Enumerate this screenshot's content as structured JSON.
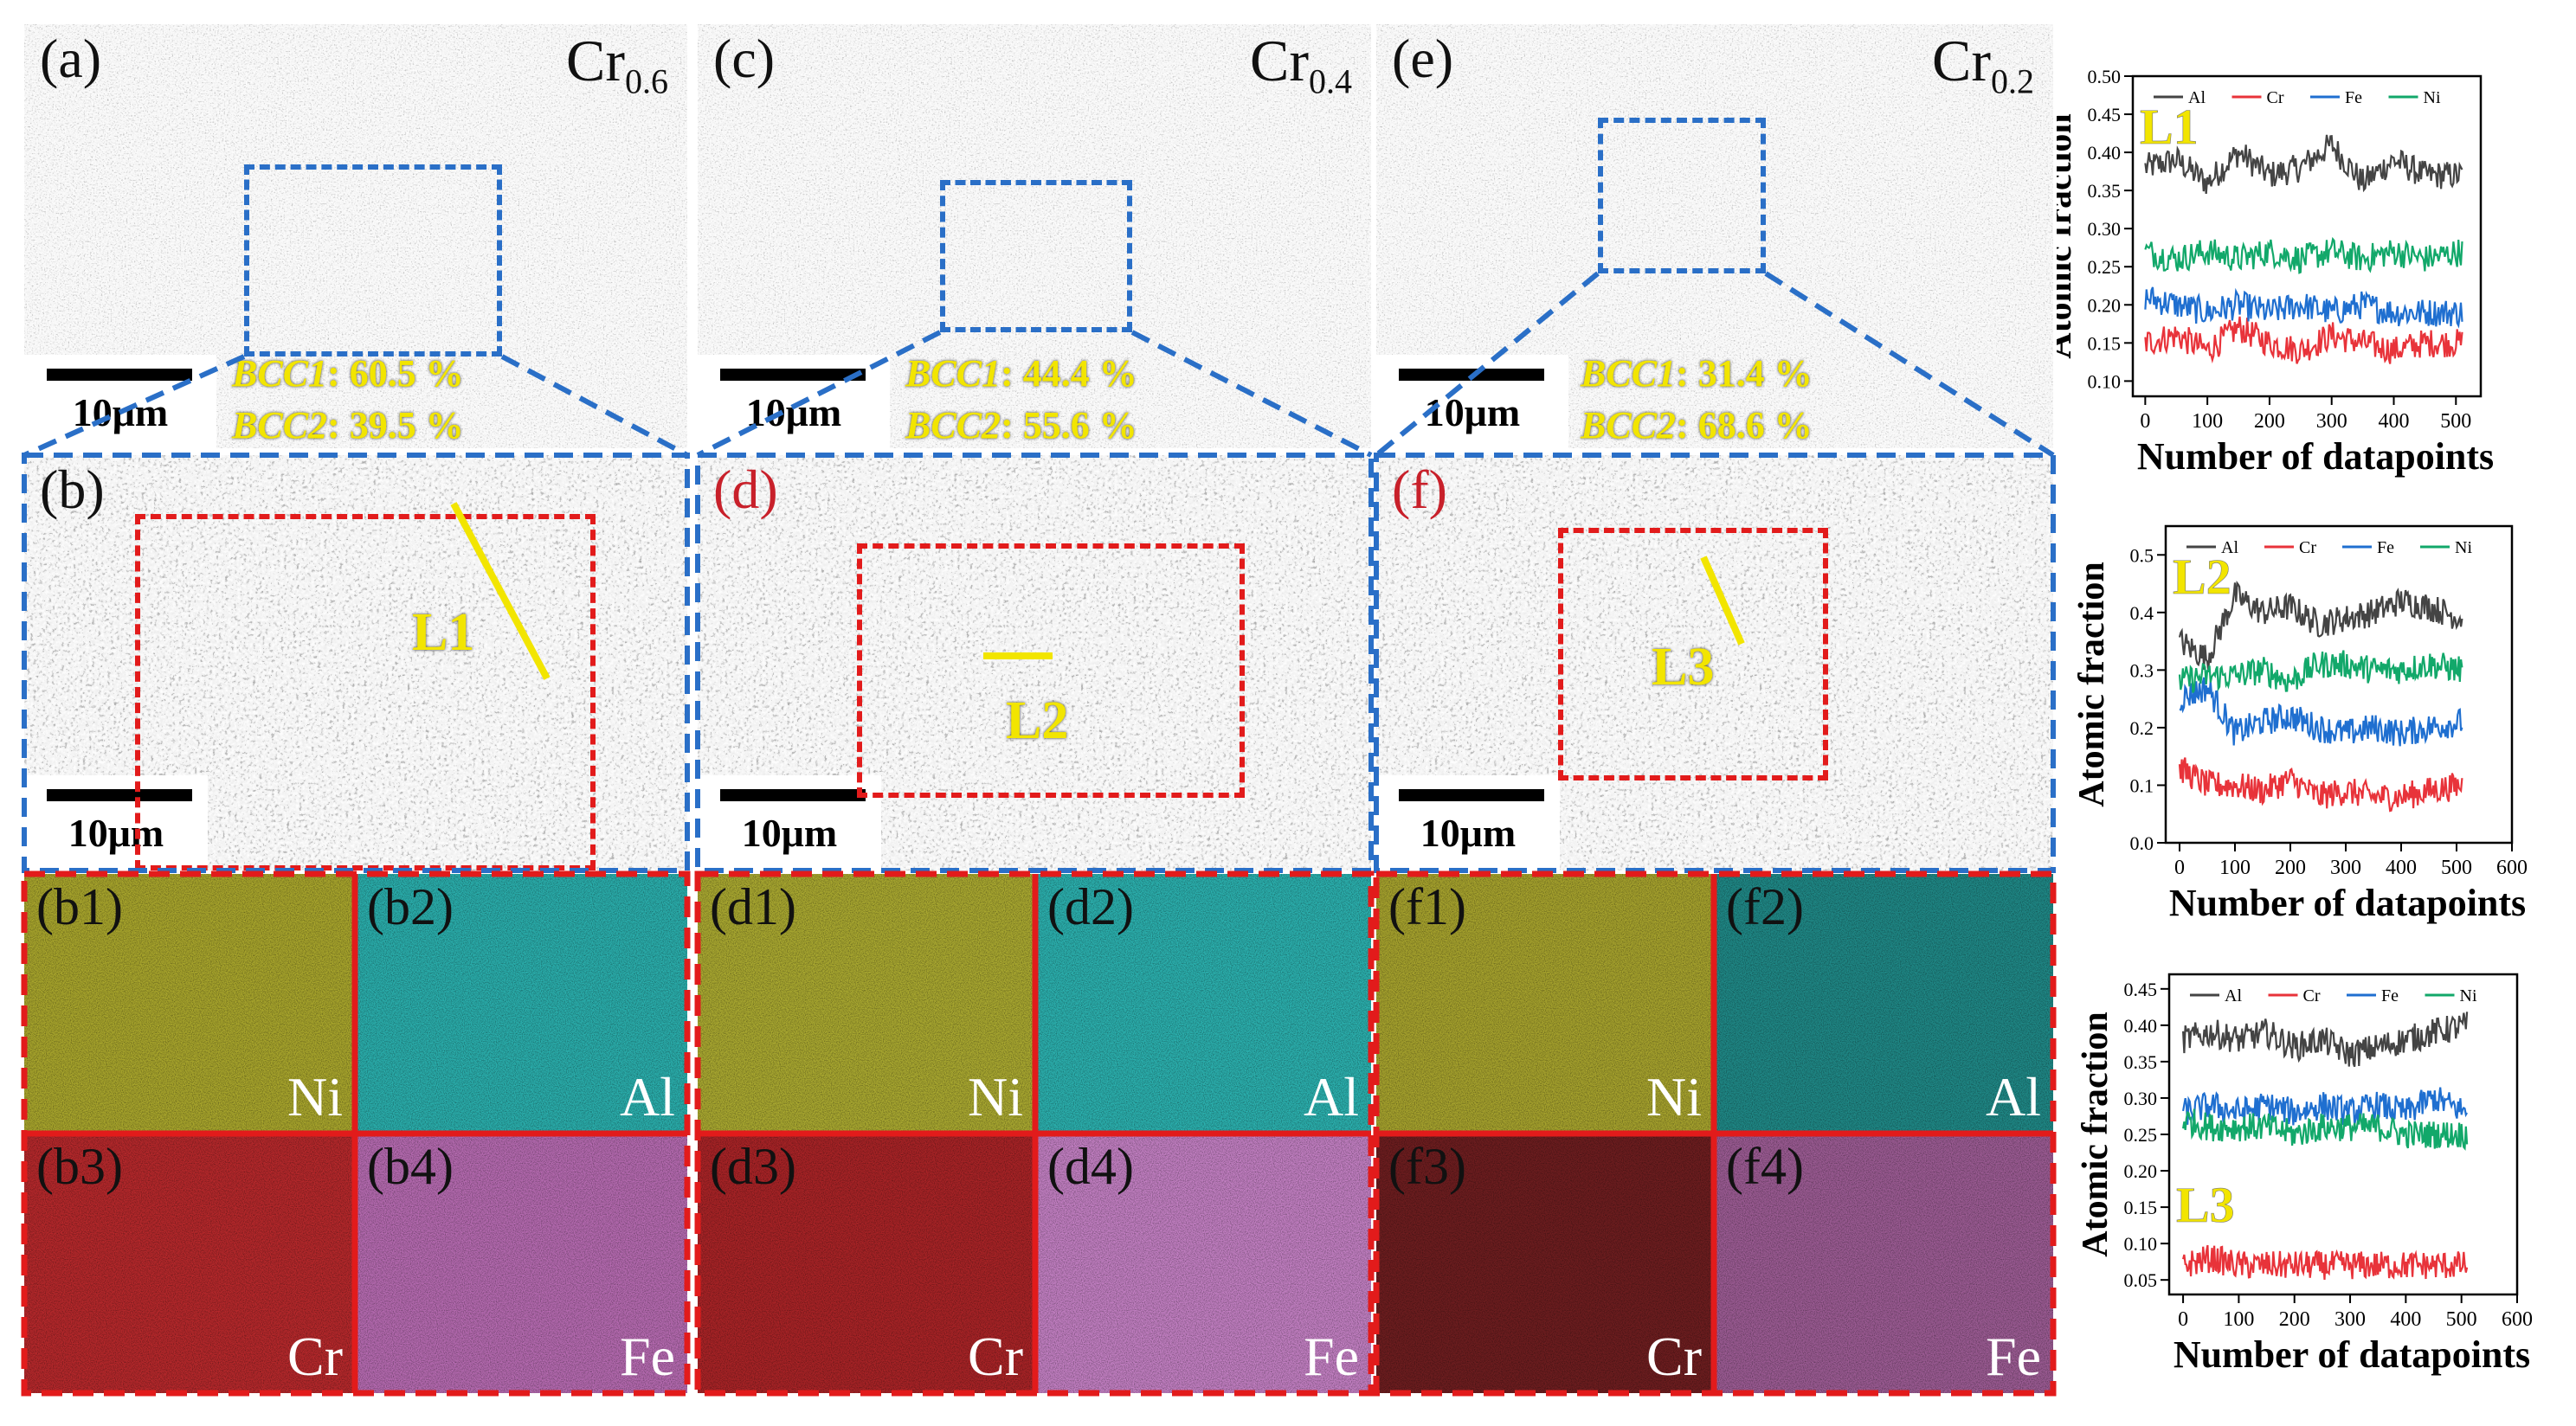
{
  "top_panels": [
    {
      "label": "(a)",
      "comp_base": "Cr",
      "comp_sub": "0.6",
      "scalebar": "10μm",
      "bcc1": "BCC1",
      "bcc1_val": ": 60.5 %",
      "bcc2": "BCC2",
      "bcc2_val": ": 39.5 %"
    },
    {
      "label": "(c)",
      "comp_base": "Cr",
      "comp_sub": "0.4",
      "scalebar": "10μm",
      "bcc1": "BCC1",
      "bcc1_val": ": 44.4 %",
      "bcc2": "BCC2",
      "bcc2_val": ": 55.6 %"
    },
    {
      "label": "(e)",
      "comp_base": "Cr",
      "comp_sub": "0.2",
      "scalebar": "10μm",
      "bcc1": "BCC1",
      "bcc1_val": ": 31.4 %",
      "bcc2": "BCC2",
      "bcc2_val": ": 68.6 %"
    }
  ],
  "mid_panels": [
    {
      "label": "(b)",
      "line": "L1",
      "scalebar": "10μm"
    },
    {
      "label": "(d)",
      "line": "L2",
      "scalebar": "10μm"
    },
    {
      "label": "(f)",
      "line": "L3",
      "scalebar": "10μm"
    }
  ],
  "maps": [
    {
      "label": "(b1)",
      "element": "Ni",
      "color": "#a8a52c"
    },
    {
      "label": "(b2)",
      "element": "Al",
      "color": "#2aaeac"
    },
    {
      "label": "(d1)",
      "element": "Ni",
      "color": "#a9a830"
    },
    {
      "label": "(d2)",
      "element": "Al",
      "color": "#2bb0ae"
    },
    {
      "label": "(f1)",
      "element": "Ni",
      "color": "#a6a22d"
    },
    {
      "label": "(f2)",
      "element": "Al",
      "color": "#1f8886"
    },
    {
      "label": "(b3)",
      "element": "Cr",
      "color": "#b5282b"
    },
    {
      "label": "(b4)",
      "element": "Fe",
      "color": "#b56ab0"
    },
    {
      "label": "(d3)",
      "element": "Cr",
      "color": "#a82326"
    },
    {
      "label": "(d4)",
      "element": "Fe",
      "color": "#c27fc2"
    },
    {
      "label": "(f3)",
      "element": "Cr",
      "color": "#6d1d1f"
    },
    {
      "label": "(f4)",
      "element": "Fe",
      "color": "#9b5b93"
    }
  ],
  "colors": {
    "Al": "#444444",
    "Cr": "#e8333a",
    "Fe": "#1f6fd0",
    "Ni": "#12a86a",
    "line_marker": "#f2e500",
    "frame_blue": "#2a6fc7",
    "frame_red": "#e21b1b"
  },
  "chart_data": [
    {
      "type": "line",
      "inset_label": "L1",
      "xlabel": "Number of datapoints",
      "ylabel": "Atomic fraction",
      "xlim": [
        -20,
        540
      ],
      "ylim": [
        0.08,
        0.5
      ],
      "xticks": [
        0,
        100,
        200,
        300,
        400,
        500
      ],
      "xticklabels": [
        "0",
        "100",
        "200",
        "300",
        "400",
        "500"
      ],
      "yticks": [
        0.1,
        0.15,
        0.2,
        0.25,
        0.3,
        0.35,
        0.4,
        0.45,
        0.5
      ],
      "yticklabels": [
        "0.10",
        "0.15",
        "0.20",
        "0.25",
        "0.30",
        "0.35",
        "0.40",
        "0.45",
        "0.50"
      ],
      "legend_position": "top",
      "series": [
        {
          "name": "Al",
          "x_start": 0,
          "x_end": 510,
          "points": [
            [
              0,
              0.38
            ],
            [
              50,
              0.39
            ],
            [
              100,
              0.36
            ],
            [
              150,
              0.4
            ],
            [
              200,
              0.37
            ],
            [
              250,
              0.38
            ],
            [
              300,
              0.41
            ],
            [
              350,
              0.36
            ],
            [
              400,
              0.39
            ],
            [
              450,
              0.37
            ],
            [
              510,
              0.37
            ]
          ]
        },
        {
          "name": "Cr",
          "x_start": 0,
          "x_end": 510,
          "points": [
            [
              0,
              0.15
            ],
            [
              50,
              0.16
            ],
            [
              100,
              0.14
            ],
            [
              150,
              0.17
            ],
            [
              200,
              0.15
            ],
            [
              250,
              0.14
            ],
            [
              300,
              0.16
            ],
            [
              350,
              0.15
            ],
            [
              400,
              0.14
            ],
            [
              450,
              0.15
            ],
            [
              510,
              0.15
            ]
          ]
        },
        {
          "name": "Fe",
          "x_start": 0,
          "x_end": 510,
          "points": [
            [
              0,
              0.21
            ],
            [
              50,
              0.2
            ],
            [
              100,
              0.19
            ],
            [
              150,
              0.2
            ],
            [
              200,
              0.19
            ],
            [
              250,
              0.2
            ],
            [
              300,
              0.19
            ],
            [
              350,
              0.2
            ],
            [
              400,
              0.19
            ],
            [
              450,
              0.19
            ],
            [
              510,
              0.19
            ]
          ]
        },
        {
          "name": "Ni",
          "x_start": 0,
          "x_end": 510,
          "points": [
            [
              0,
              0.27
            ],
            [
              50,
              0.26
            ],
            [
              100,
              0.27
            ],
            [
              150,
              0.26
            ],
            [
              200,
              0.27
            ],
            [
              250,
              0.26
            ],
            [
              300,
              0.27
            ],
            [
              350,
              0.26
            ],
            [
              400,
              0.27
            ],
            [
              450,
              0.26
            ],
            [
              510,
              0.27
            ]
          ]
        }
      ]
    },
    {
      "type": "line",
      "inset_label": "L2",
      "xlabel": "Number of datapoints",
      "ylabel": "Atomic fraction",
      "xlim": [
        -25,
        600
      ],
      "ylim": [
        0.0,
        0.55
      ],
      "xticks": [
        0,
        100,
        200,
        300,
        400,
        500,
        600
      ],
      "xticklabels": [
        "0",
        "100",
        "200",
        "300",
        "400",
        "500",
        "600"
      ],
      "yticks": [
        0.0,
        0.1,
        0.2,
        0.3,
        0.4,
        0.5
      ],
      "yticklabels": [
        "0.0",
        "0.1",
        "0.2",
        "0.3",
        "0.4",
        "0.5"
      ],
      "legend_position": "top",
      "series": [
        {
          "name": "Al",
          "x_start": 0,
          "x_end": 510,
          "points": [
            [
              0,
              0.35
            ],
            [
              50,
              0.32
            ],
            [
              100,
              0.43
            ],
            [
              150,
              0.4
            ],
            [
              200,
              0.41
            ],
            [
              250,
              0.38
            ],
            [
              300,
              0.39
            ],
            [
              350,
              0.4
            ],
            [
              400,
              0.42
            ],
            [
              450,
              0.41
            ],
            [
              510,
              0.39
            ]
          ]
        },
        {
          "name": "Cr",
          "x_start": 0,
          "x_end": 510,
          "points": [
            [
              0,
              0.13
            ],
            [
              50,
              0.1
            ],
            [
              100,
              0.1
            ],
            [
              150,
              0.09
            ],
            [
              200,
              0.11
            ],
            [
              250,
              0.08
            ],
            [
              300,
              0.09
            ],
            [
              350,
              0.08
            ],
            [
              400,
              0.08
            ],
            [
              450,
              0.09
            ],
            [
              510,
              0.1
            ]
          ]
        },
        {
          "name": "Fe",
          "x_start": 0,
          "x_end": 510,
          "points": [
            [
              0,
              0.25
            ],
            [
              50,
              0.27
            ],
            [
              100,
              0.19
            ],
            [
              150,
              0.21
            ],
            [
              200,
              0.22
            ],
            [
              250,
              0.2
            ],
            [
              300,
              0.19
            ],
            [
              350,
              0.2
            ],
            [
              400,
              0.19
            ],
            [
              450,
              0.2
            ],
            [
              510,
              0.21
            ]
          ]
        },
        {
          "name": "Ni",
          "x_start": 0,
          "x_end": 510,
          "points": [
            [
              0,
              0.28
            ],
            [
              50,
              0.29
            ],
            [
              100,
              0.29
            ],
            [
              150,
              0.3
            ],
            [
              200,
              0.28
            ],
            [
              250,
              0.31
            ],
            [
              300,
              0.31
            ],
            [
              350,
              0.3
            ],
            [
              400,
              0.3
            ],
            [
              450,
              0.31
            ],
            [
              510,
              0.3
            ]
          ]
        }
      ]
    },
    {
      "type": "line",
      "inset_label": "L3",
      "xlabel": "Number of datapoints",
      "ylabel": "Atomic fraction",
      "xlim": [
        -25,
        600
      ],
      "ylim": [
        0.03,
        0.47
      ],
      "xticks": [
        0,
        100,
        200,
        300,
        400,
        500,
        600
      ],
      "xticklabels": [
        "0",
        "100",
        "200",
        "300",
        "400",
        "500",
        "600"
      ],
      "yticks": [
        0.05,
        0.1,
        0.15,
        0.2,
        0.25,
        0.3,
        0.35,
        0.4,
        0.45
      ],
      "yticklabels": [
        "0.05",
        "0.10",
        "0.15",
        "0.20",
        "0.25",
        "0.30",
        "0.35",
        "0.40",
        "0.45"
      ],
      "legend_position": "top",
      "series": [
        {
          "name": "Al",
          "x_start": 0,
          "x_end": 510,
          "points": [
            [
              0,
              0.38
            ],
            [
              50,
              0.39
            ],
            [
              100,
              0.38
            ],
            [
              150,
              0.39
            ],
            [
              200,
              0.37
            ],
            [
              250,
              0.38
            ],
            [
              300,
              0.36
            ],
            [
              350,
              0.37
            ],
            [
              400,
              0.38
            ],
            [
              450,
              0.39
            ],
            [
              510,
              0.4
            ]
          ]
        },
        {
          "name": "Cr",
          "x_start": 0,
          "x_end": 510,
          "points": [
            [
              0,
              0.07
            ],
            [
              50,
              0.08
            ],
            [
              100,
              0.07
            ],
            [
              150,
              0.07
            ],
            [
              200,
              0.07
            ],
            [
              250,
              0.07
            ],
            [
              300,
              0.07
            ],
            [
              350,
              0.07
            ],
            [
              400,
              0.07
            ],
            [
              450,
              0.07
            ],
            [
              510,
              0.07
            ]
          ]
        },
        {
          "name": "Fe",
          "x_start": 0,
          "x_end": 510,
          "points": [
            [
              0,
              0.28
            ],
            [
              50,
              0.29
            ],
            [
              100,
              0.28
            ],
            [
              150,
              0.29
            ],
            [
              200,
              0.28
            ],
            [
              250,
              0.29
            ],
            [
              300,
              0.28
            ],
            [
              350,
              0.29
            ],
            [
              400,
              0.28
            ],
            [
              450,
              0.3
            ],
            [
              510,
              0.28
            ]
          ]
        },
        {
          "name": "Ni",
          "x_start": 0,
          "x_end": 510,
          "points": [
            [
              0,
              0.27
            ],
            [
              50,
              0.26
            ],
            [
              100,
              0.26
            ],
            [
              150,
              0.26
            ],
            [
              200,
              0.25
            ],
            [
              250,
              0.26
            ],
            [
              300,
              0.26
            ],
            [
              350,
              0.26
            ],
            [
              400,
              0.25
            ],
            [
              450,
              0.25
            ],
            [
              510,
              0.25
            ]
          ]
        }
      ]
    }
  ]
}
